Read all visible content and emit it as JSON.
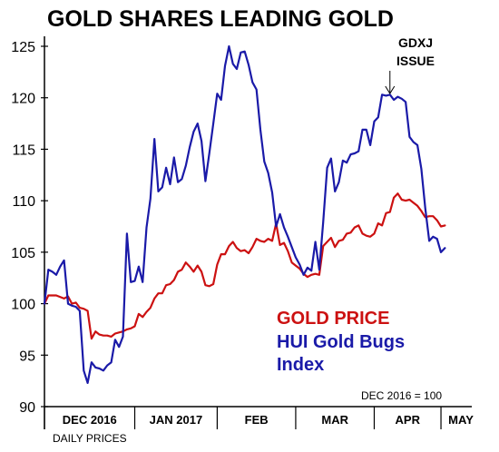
{
  "chart_data": {
    "type": "line",
    "title": "GOLD SHARES LEADING GOLD",
    "ylim": [
      90,
      125
    ],
    "yticks": [
      90,
      95,
      100,
      105,
      110,
      115,
      120,
      125
    ],
    "months": [
      "DEC 2016",
      "JAN 2017",
      "FEB",
      "MAR",
      "APR",
      "MAY"
    ],
    "x_axis_note": "DAILY PRICES",
    "base_note": "DEC 2016 = 100",
    "annotation": {
      "line1": "GDXJ",
      "line2": "ISSUE",
      "x_day": 88
    },
    "x_day_range": [
      0,
      107
    ],
    "month_start_days": [
      0,
      23,
      44,
      64,
      84,
      101
    ],
    "series": [
      {
        "name": "GOLD PRICE",
        "color": "#cc1111",
        "points": [
          [
            0,
            100
          ],
          [
            1,
            100.8
          ],
          [
            3,
            100.8
          ],
          [
            5,
            100.5
          ],
          [
            6,
            100.7
          ],
          [
            7,
            100
          ],
          [
            8,
            100.1
          ],
          [
            9,
            99.6
          ],
          [
            10,
            99.5
          ],
          [
            11,
            99.3
          ],
          [
            12,
            96.6
          ],
          [
            13,
            97.3
          ],
          [
            14,
            97
          ],
          [
            15,
            96.9
          ],
          [
            16,
            96.9
          ],
          [
            17,
            96.8
          ],
          [
            18,
            97.1
          ],
          [
            19,
            97.2
          ],
          [
            20,
            97.3
          ],
          [
            21,
            97.5
          ],
          [
            22,
            97.6
          ],
          [
            23,
            97.8
          ],
          [
            24,
            99
          ],
          [
            25,
            98.7
          ],
          [
            26,
            99.2
          ],
          [
            27,
            99.6
          ],
          [
            28,
            100.5
          ],
          [
            29,
            101
          ],
          [
            30,
            101
          ],
          [
            31,
            101.8
          ],
          [
            32,
            101.9
          ],
          [
            33,
            102.3
          ],
          [
            34,
            103.1
          ],
          [
            35,
            103.3
          ],
          [
            36,
            104
          ],
          [
            37,
            103.6
          ],
          [
            38,
            103.1
          ],
          [
            39,
            103.7
          ],
          [
            40,
            103.1
          ],
          [
            41,
            101.8
          ],
          [
            42,
            101.7
          ],
          [
            43,
            101.9
          ],
          [
            44,
            103.8
          ],
          [
            45,
            104.8
          ],
          [
            46,
            104.8
          ],
          [
            47,
            105.6
          ],
          [
            48,
            106
          ],
          [
            49,
            105.4
          ],
          [
            50,
            105.1
          ],
          [
            51,
            105.2
          ],
          [
            52,
            104.9
          ],
          [
            53,
            105.5
          ],
          [
            54,
            106.3
          ],
          [
            55,
            106.1
          ],
          [
            56,
            106
          ],
          [
            57,
            106.3
          ],
          [
            58,
            106.1
          ],
          [
            59,
            107.8
          ],
          [
            60,
            105.7
          ],
          [
            61,
            105.9
          ],
          [
            62,
            105.1
          ],
          [
            63,
            104
          ],
          [
            64,
            103.7
          ],
          [
            65,
            103.4
          ],
          [
            66,
            102.9
          ],
          [
            67,
            102.6
          ],
          [
            68,
            102.8
          ],
          [
            69,
            102.9
          ],
          [
            70,
            102.8
          ],
          [
            71,
            105.6
          ],
          [
            72,
            106
          ],
          [
            73,
            106.4
          ],
          [
            74,
            105.5
          ],
          [
            75,
            106.1
          ],
          [
            76,
            106.2
          ],
          [
            77,
            106.8
          ],
          [
            78,
            106.9
          ],
          [
            79,
            107.4
          ],
          [
            80,
            107.6
          ],
          [
            81,
            106.8
          ],
          [
            82,
            106.6
          ],
          [
            83,
            106.5
          ],
          [
            84,
            106.8
          ],
          [
            85,
            107.8
          ],
          [
            86,
            107.6
          ],
          [
            87,
            108.8
          ],
          [
            88,
            108.9
          ],
          [
            89,
            110.3
          ],
          [
            90,
            110.7
          ],
          [
            91,
            110.1
          ],
          [
            92,
            110
          ],
          [
            93,
            110.1
          ],
          [
            94,
            109.8
          ],
          [
            95,
            109.5
          ],
          [
            96,
            109
          ],
          [
            97,
            108.4
          ],
          [
            98,
            108.5
          ],
          [
            99,
            108.5
          ],
          [
            100,
            108.1
          ],
          [
            101,
            107.5
          ],
          [
            102,
            107.6
          ]
        ]
      },
      {
        "name": "HUI Gold Bugs Index",
        "color": "#1a1aa8",
        "points": [
          [
            0,
            100
          ],
          [
            1,
            103.3
          ],
          [
            2,
            103.1
          ],
          [
            3,
            102.8
          ],
          [
            4,
            103.6
          ],
          [
            5,
            104.2
          ],
          [
            6,
            100
          ],
          [
            7,
            99.8
          ],
          [
            8,
            99.7
          ],
          [
            9,
            99.3
          ],
          [
            10,
            93.5
          ],
          [
            11,
            92.3
          ],
          [
            12,
            94.3
          ],
          [
            13,
            93.8
          ],
          [
            14,
            93.7
          ],
          [
            15,
            93.5
          ],
          [
            16,
            94
          ],
          [
            17,
            94.3
          ],
          [
            18,
            96.5
          ],
          [
            19,
            95.8
          ],
          [
            20,
            96.8
          ],
          [
            21,
            106.8
          ],
          [
            22,
            102.1
          ],
          [
            23,
            102.2
          ],
          [
            24,
            103.6
          ],
          [
            25,
            102.1
          ],
          [
            26,
            107.4
          ],
          [
            27,
            110.2
          ],
          [
            28,
            116
          ],
          [
            29,
            110.9
          ],
          [
            30,
            111.3
          ],
          [
            31,
            113.2
          ],
          [
            32,
            111.6
          ],
          [
            33,
            114.2
          ],
          [
            34,
            111.8
          ],
          [
            35,
            112.1
          ],
          [
            36,
            113.4
          ],
          [
            37,
            115.2
          ],
          [
            38,
            116.7
          ],
          [
            39,
            117.5
          ],
          [
            40,
            115.8
          ],
          [
            41,
            111.9
          ],
          [
            42,
            114.6
          ],
          [
            43,
            117.5
          ],
          [
            44,
            120.4
          ],
          [
            45,
            119.8
          ],
          [
            46,
            123.1
          ],
          [
            47,
            125
          ],
          [
            48,
            123.3
          ],
          [
            49,
            122.8
          ],
          [
            50,
            124.4
          ],
          [
            51,
            124.5
          ],
          [
            52,
            123.2
          ],
          [
            53,
            121.5
          ],
          [
            54,
            120.8
          ],
          [
            55,
            116.9
          ],
          [
            56,
            113.8
          ],
          [
            57,
            112.7
          ],
          [
            58,
            110.8
          ],
          [
            59,
            107.5
          ],
          [
            60,
            108.7
          ],
          [
            61,
            107.4
          ],
          [
            62,
            106.5
          ],
          [
            63,
            105.5
          ],
          [
            64,
            104.5
          ],
          [
            65,
            103.8
          ],
          [
            66,
            102.8
          ],
          [
            67,
            103.5
          ],
          [
            68,
            103.2
          ],
          [
            69,
            106
          ],
          [
            70,
            103.3
          ],
          [
            71,
            107.9
          ],
          [
            72,
            113.2
          ],
          [
            73,
            114.1
          ],
          [
            74,
            110.9
          ],
          [
            75,
            111.8
          ],
          [
            76,
            113.9
          ],
          [
            77,
            113.7
          ],
          [
            78,
            114.5
          ],
          [
            79,
            114.6
          ],
          [
            80,
            114.8
          ],
          [
            81,
            116.9
          ],
          [
            82,
            116.9
          ],
          [
            83,
            115.4
          ],
          [
            84,
            117.7
          ],
          [
            85,
            118.1
          ],
          [
            86,
            120.3
          ],
          [
            87,
            120.2
          ],
          [
            88,
            120.3
          ],
          [
            89,
            119.8
          ],
          [
            90,
            120.1
          ],
          [
            91,
            119.9
          ],
          [
            92,
            119.6
          ],
          [
            93,
            116.2
          ],
          [
            94,
            115.7
          ],
          [
            95,
            115.4
          ],
          [
            96,
            113.1
          ],
          [
            97,
            109.3
          ],
          [
            98,
            106.1
          ],
          [
            99,
            106.5
          ],
          [
            100,
            106.3
          ],
          [
            101,
            105
          ],
          [
            102,
            105.4
          ]
        ]
      }
    ]
  },
  "legend": {
    "gold": "GOLD PRICE",
    "hui_line1": "HUI Gold Bugs",
    "hui_line2": "Index"
  }
}
